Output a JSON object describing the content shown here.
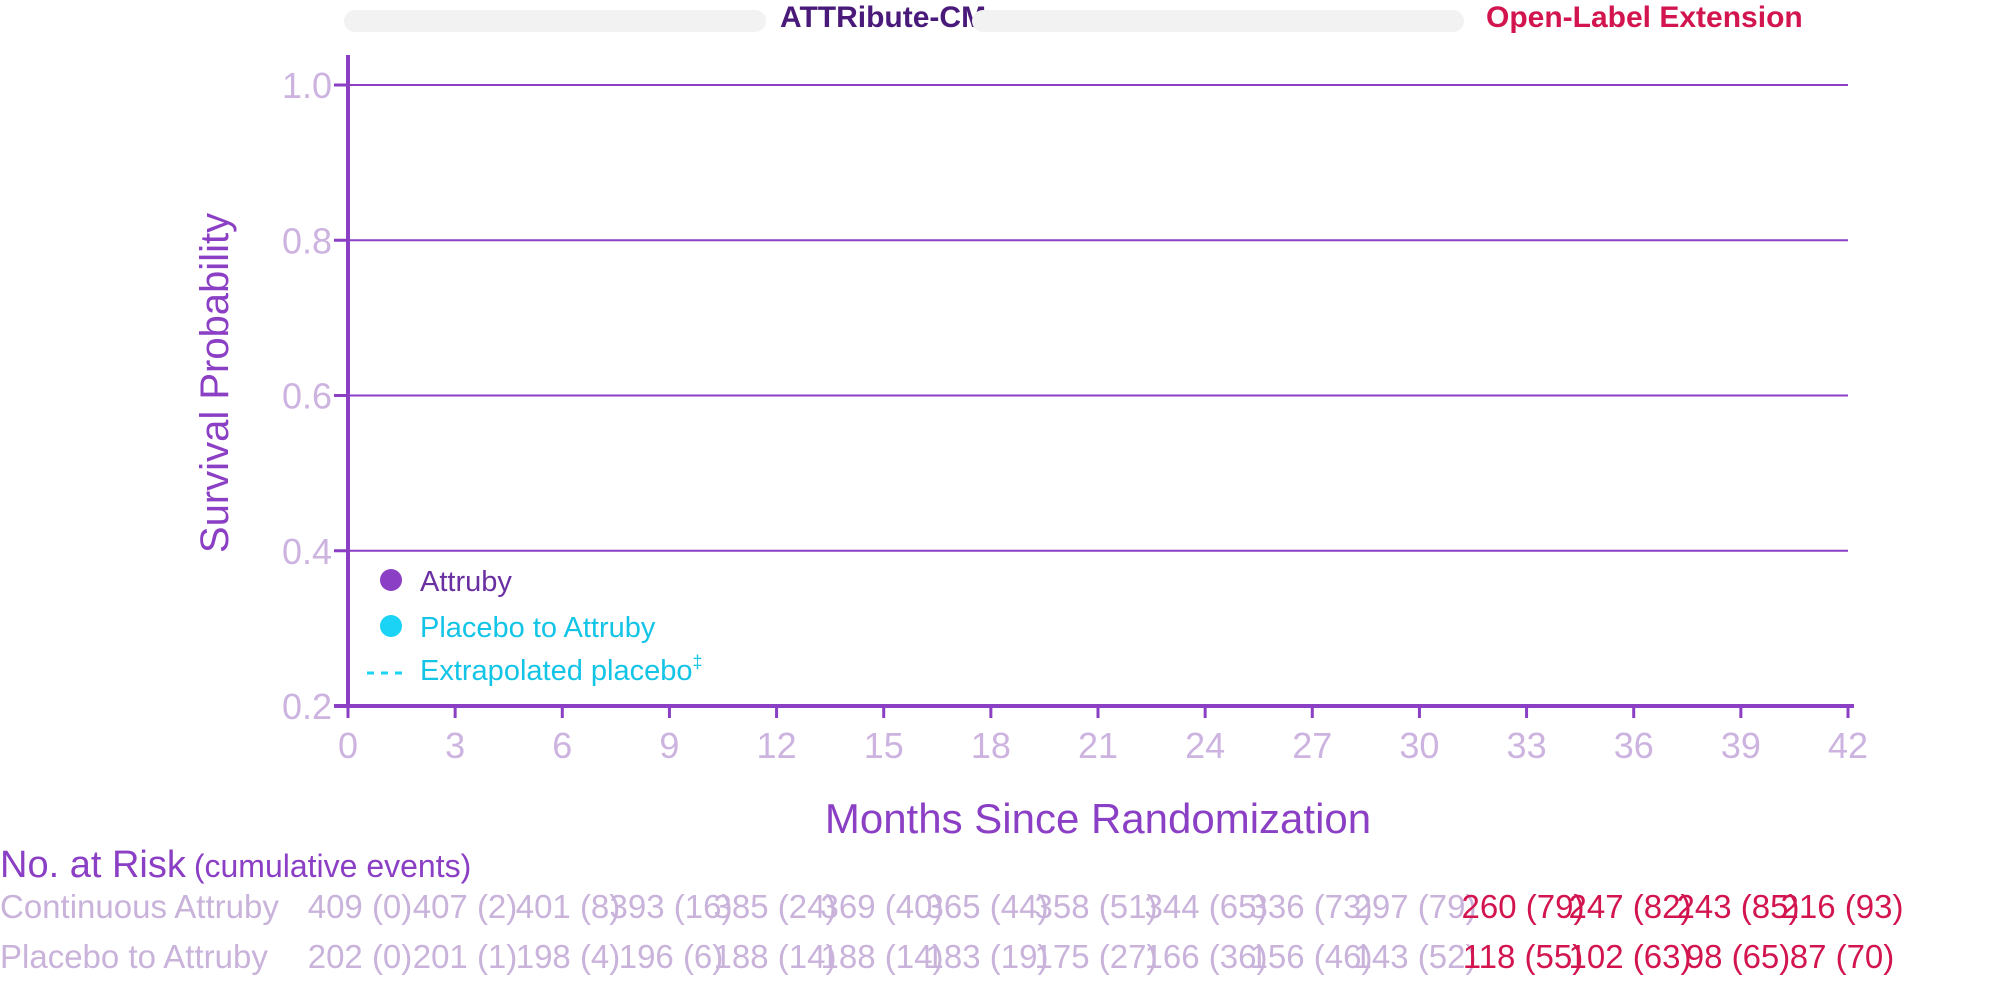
{
  "colors": {
    "axis": "#8b3fc4",
    "tick_text": "#cdb3e0",
    "label_purple": "#8b3fc4",
    "dark_purple": "#4a1a7a",
    "extension_red": "#d2154f",
    "attruby": "#8b3fc4",
    "placebo": "#1ad3f5",
    "risk_grey": "#c9b3db"
  },
  "banners": {
    "study_label": "ATTRibute-CM",
    "extension_label": "Open-Label Extension"
  },
  "chart_data": {
    "type": "line",
    "ylabel": "Survival Probability",
    "xlabel": "Months Since Randomization",
    "x_ticks": [
      "0",
      "3",
      "6",
      "9",
      "12",
      "15",
      "18",
      "21",
      "24",
      "27",
      "30",
      "33",
      "36",
      "39",
      "42"
    ],
    "y_ticks": [
      "0.2",
      "0.4",
      "0.6",
      "0.8",
      "1.0"
    ],
    "xlim": [
      0,
      42
    ],
    "ylim": [
      0.2,
      1.0
    ],
    "grid": "horizontal",
    "legend_placement": "bottom-left",
    "legend": [
      {
        "label": "Attruby",
        "marker": "dot",
        "color": "#8b3fc4"
      },
      {
        "label": "Placebo to Attruby",
        "marker": "dot",
        "color": "#1ad3f5"
      },
      {
        "label": "Extrapolated placebo",
        "superscript": "‡",
        "marker": "dashed",
        "color": "#1ad3f5"
      }
    ],
    "series": []
  },
  "risk_table": {
    "title": "No. at Risk",
    "subtitle": "(cumulative events)",
    "rows": [
      {
        "label": "Continuous Attruby",
        "cells": [
          "409 (0)",
          "407 (2)",
          "401 (8)",
          "393 (16)",
          "385 (24)",
          "369 (40)",
          "365 (44)",
          "358 (51)",
          "344 (65)",
          "336 (73)",
          "297 (79)",
          "260 (79)",
          "247 (82)",
          "243 (85)",
          "216 (93)"
        ]
      },
      {
        "label": "Placebo to Attruby",
        "cells": [
          "202 (0)",
          "201 (1)",
          "198 (4)",
          "196 (6)",
          "188 (14)",
          "188 (14)",
          "183 (19)",
          "175 (27)",
          "166 (36)",
          "156 (46)",
          "143 (52)",
          "118 (55)",
          "102 (63)",
          "98 (65)",
          "87 (70)"
        ]
      }
    ],
    "extension_start_index": 11
  }
}
